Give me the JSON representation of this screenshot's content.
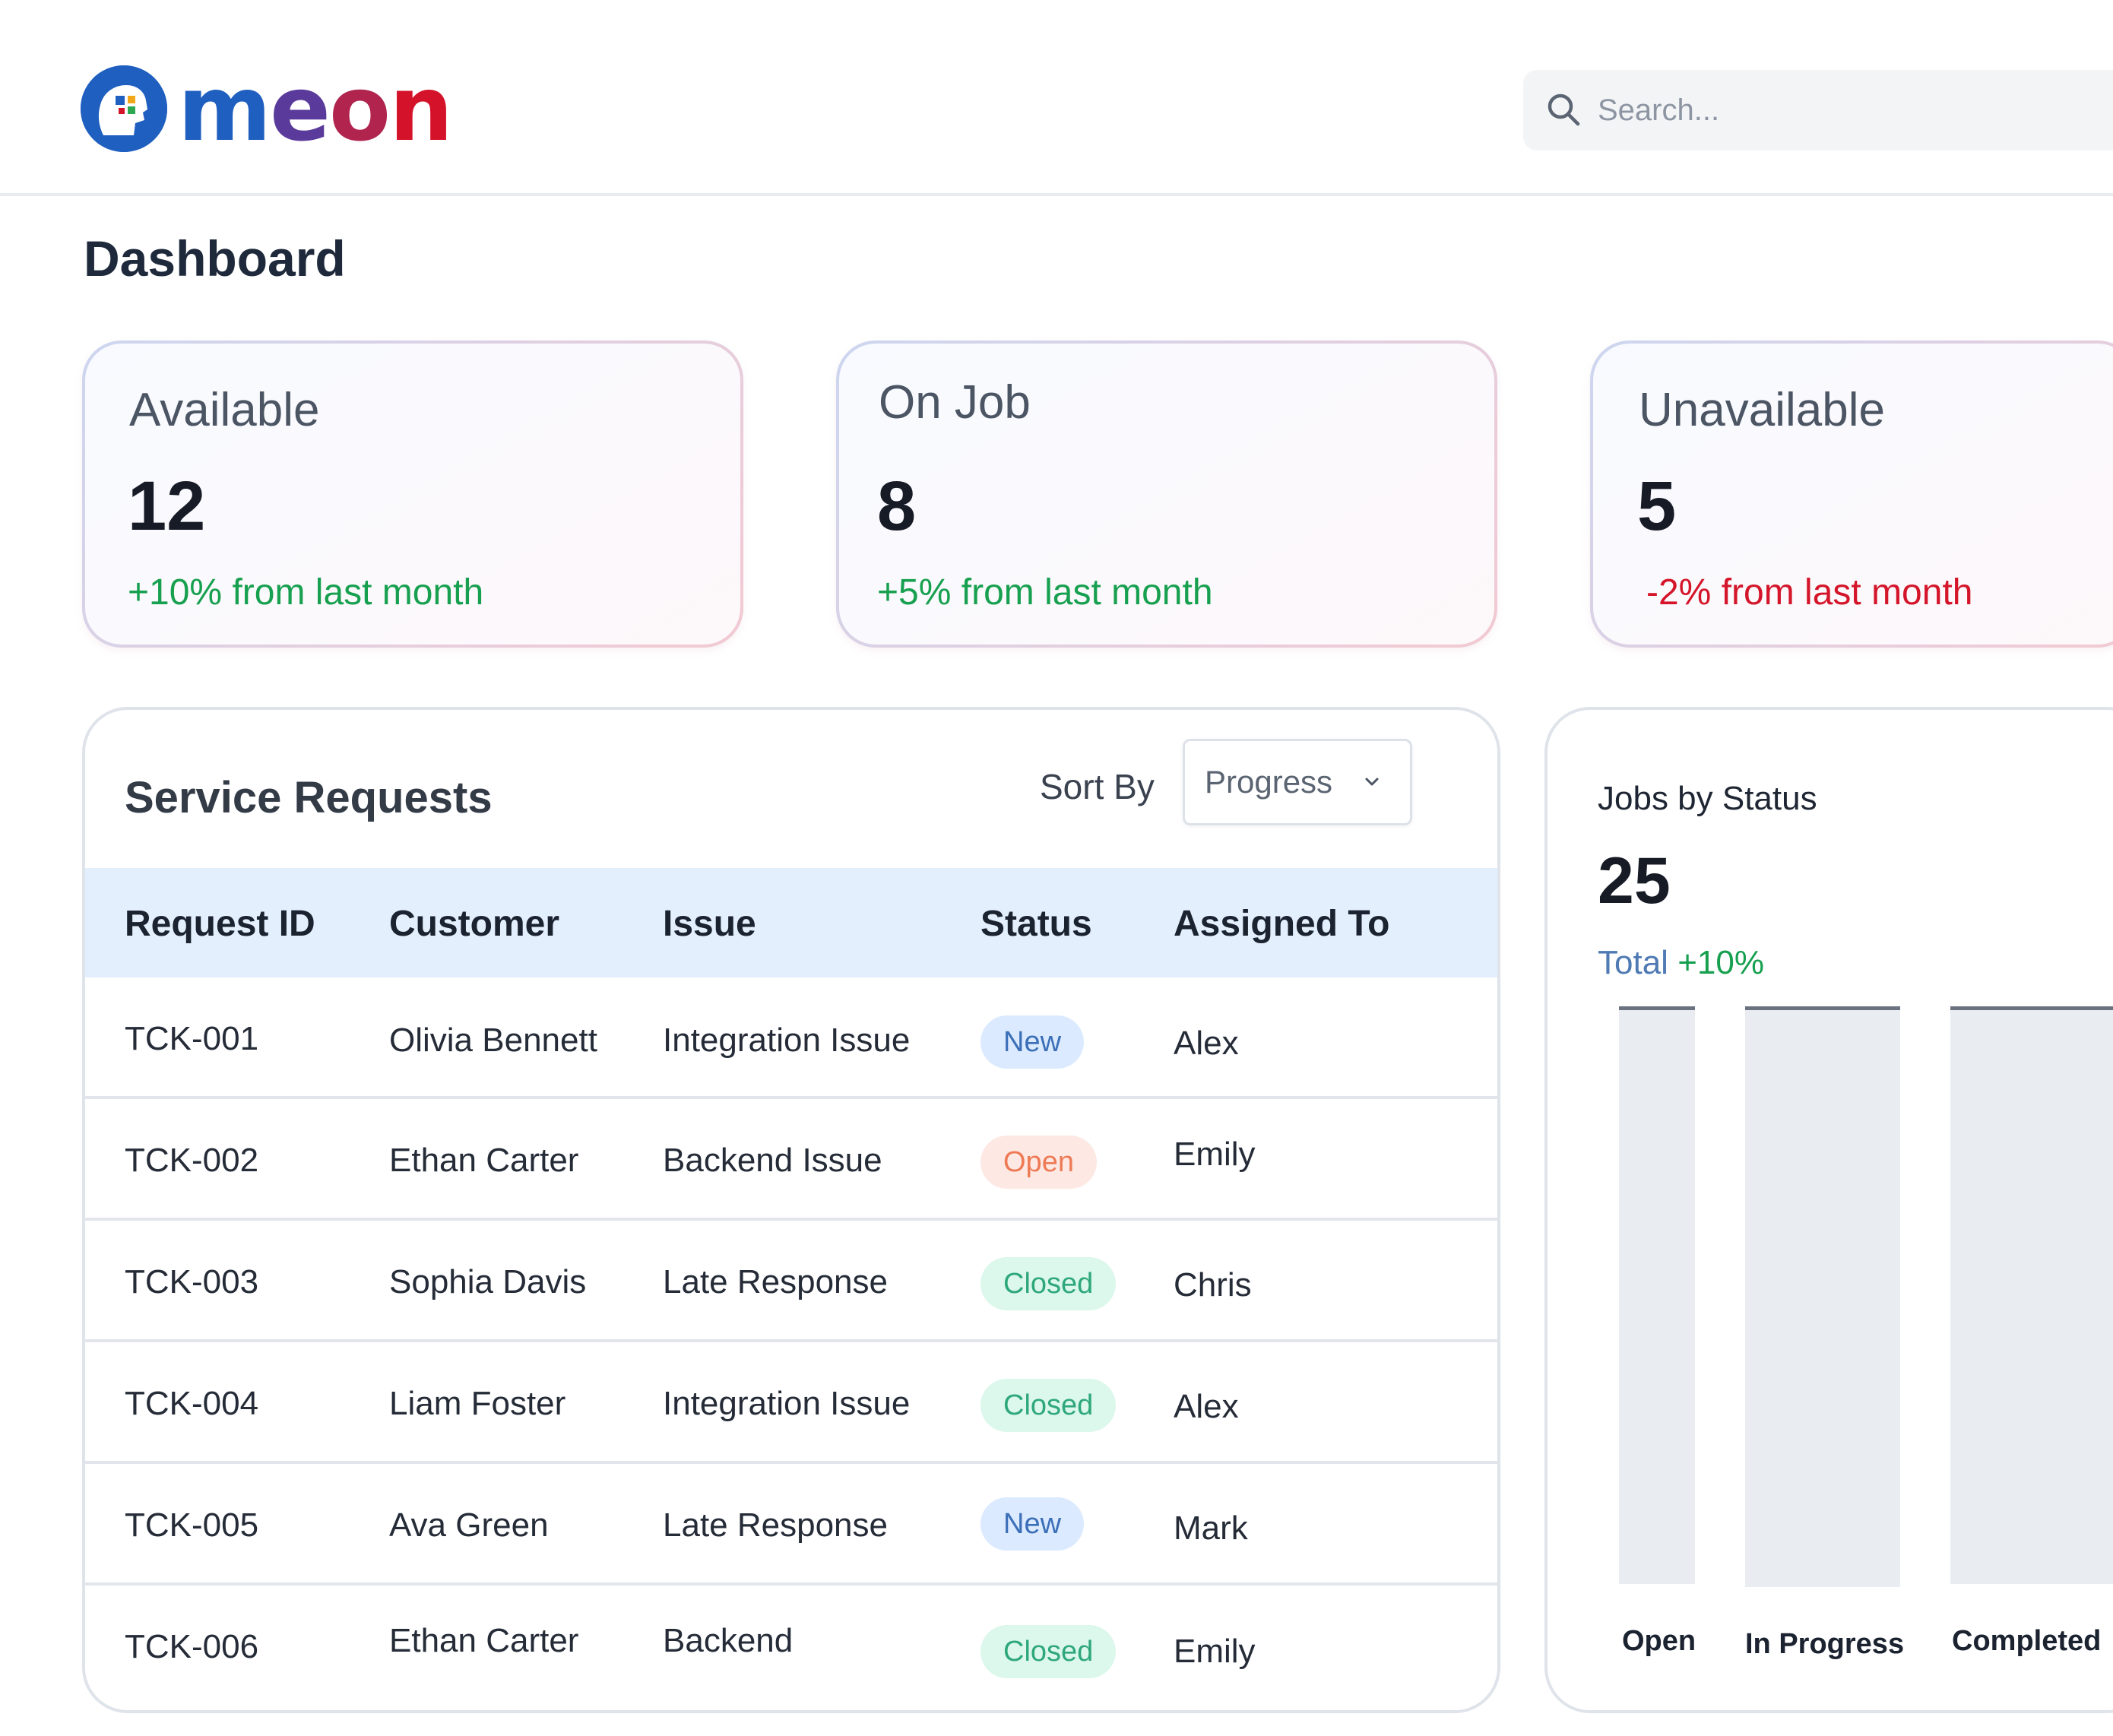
{
  "brand": {
    "name": "meon"
  },
  "search": {
    "placeholder": "Search..."
  },
  "page": {
    "title": "Dashboard"
  },
  "stats": [
    {
      "label": "Available",
      "value": "12",
      "change": "+10% from last month",
      "trend": "up"
    },
    {
      "label": "On Job",
      "value": "8",
      "change": "+5% from last month",
      "trend": "up"
    },
    {
      "label": "Unavailable",
      "value": "5",
      "change": "-2% from last month",
      "trend": "down"
    }
  ],
  "service_requests": {
    "title": "Service Requests",
    "sort_label": "Sort By",
    "sort_value": "Progress",
    "columns": [
      "Request ID",
      "Customer",
      "Issue",
      "Status",
      "Assigned To"
    ],
    "rows": [
      {
        "id": "TCK-001",
        "customer": "Olivia Bennett",
        "issue": "Integration Issue",
        "status": "New",
        "assigned": "Alex"
      },
      {
        "id": "TCK-002",
        "customer": "Ethan Carter",
        "issue": "Backend Issue",
        "status": "Open",
        "assigned": "Emily"
      },
      {
        "id": "TCK-003",
        "customer": "Sophia Davis",
        "issue": "Late Response",
        "status": "Closed",
        "assigned": "Chris"
      },
      {
        "id": "TCK-004",
        "customer": "Liam Foster",
        "issue": "Integration Issue",
        "status": "Closed",
        "assigned": "Alex"
      },
      {
        "id": "TCK-005",
        "customer": "Ava Green",
        "issue": "Late Response",
        "status": "New",
        "assigned": "Mark"
      },
      {
        "id": "TCK-006",
        "customer": "Ethan Carter",
        "issue": "Backend",
        "status": "Closed",
        "assigned": "Emily"
      }
    ]
  },
  "jobs_by_status": {
    "title": "Jobs by Status",
    "total": "25",
    "total_label": "Total",
    "total_change": "+10%",
    "bars": [
      {
        "label": "Open"
      },
      {
        "label": "In Progress"
      },
      {
        "label": "Completed"
      }
    ]
  },
  "colors": {
    "positive": "#17a04f",
    "negative": "#d4152a",
    "table_header_bg": "#e3effd",
    "badge_new": "#dbeafe",
    "badge_open": "#fde8e3",
    "badge_closed": "#dcf7ec"
  },
  "icons": {
    "search": "search-icon",
    "chevron": "chevron-down-icon",
    "logo": "head-logo-icon"
  }
}
